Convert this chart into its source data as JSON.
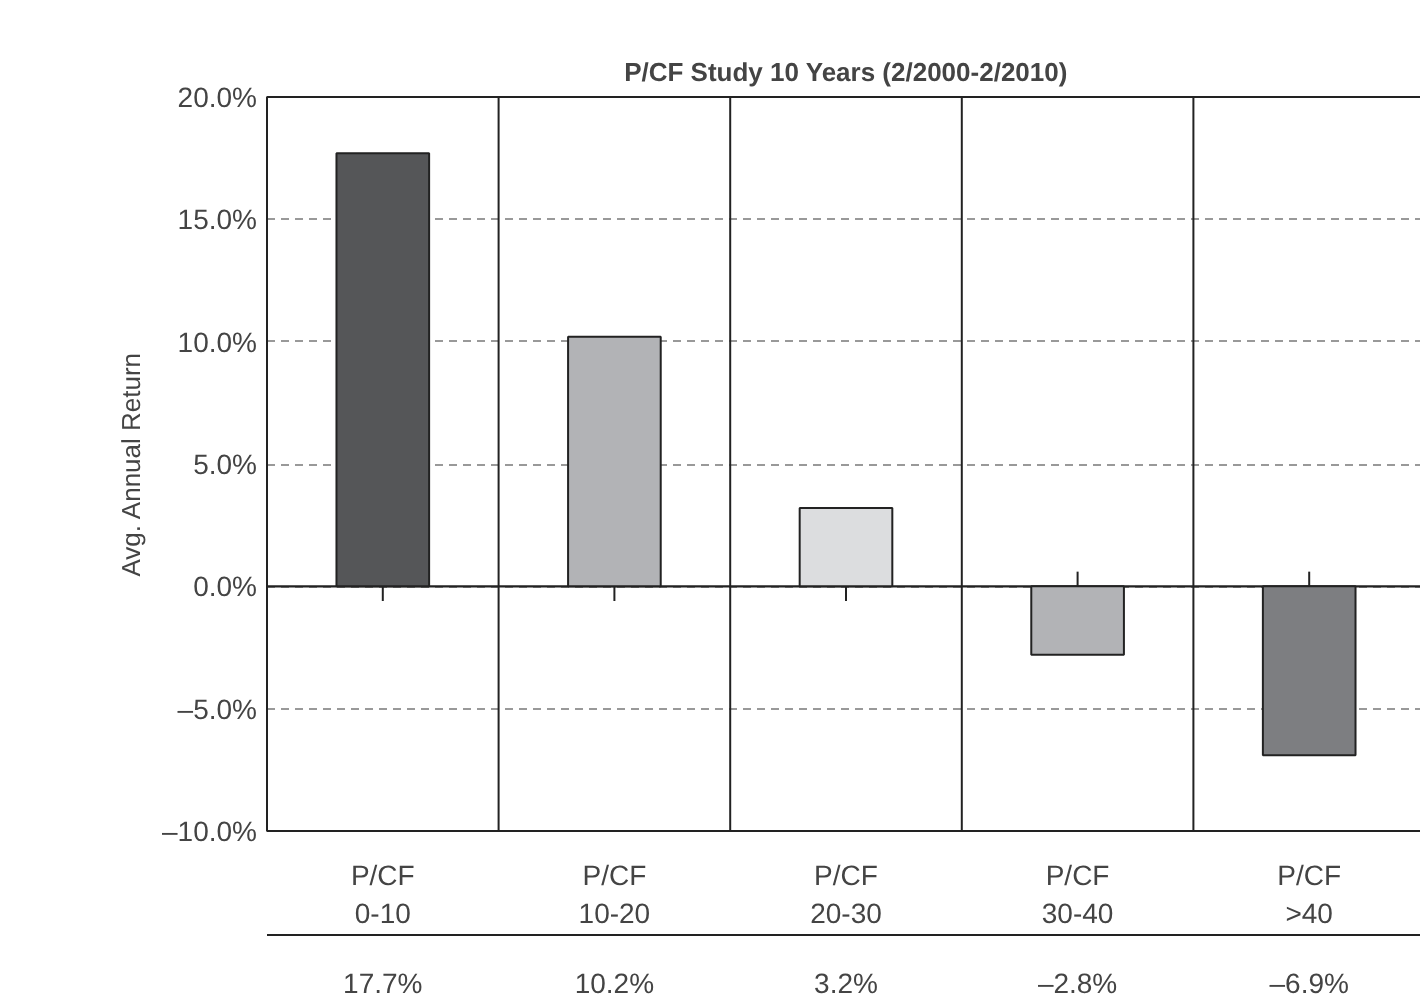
{
  "chart_data": {
    "type": "bar",
    "title": "P/CF Study 10 Years (2/2000-2/2010)",
    "ylabel": "Avg. Annual Return",
    "categories": [
      "P/CF\n0-10",
      "P/CF\n10-20",
      "P/CF\n20-30",
      "P/CF\n30-40",
      "P/CF\n>40"
    ],
    "values": [
      17.7,
      10.2,
      3.2,
      -2.8,
      -6.9
    ],
    "colors": [
      "#555658",
      "#b2b3b6",
      "#dcdddf",
      "#b2b3b6",
      "#7d7e81"
    ],
    "value_labels": [
      "17.7%",
      "10.2%",
      "3.2%",
      "–2.8%",
      "–6.9%"
    ],
    "ylim": [
      -10,
      20
    ],
    "yticks": [
      {
        "value": -10,
        "label": "–10.0%"
      },
      {
        "value": -5,
        "label": "–5.0%"
      },
      {
        "value": 0,
        "label": "0.0%"
      },
      {
        "value": 5,
        "label": "5.0%"
      },
      {
        "value": 10,
        "label": "10.0%"
      },
      {
        "value": 15,
        "label": "15.0%"
      },
      {
        "value": 20,
        "label": "20.0%"
      }
    ],
    "grid": "y"
  }
}
